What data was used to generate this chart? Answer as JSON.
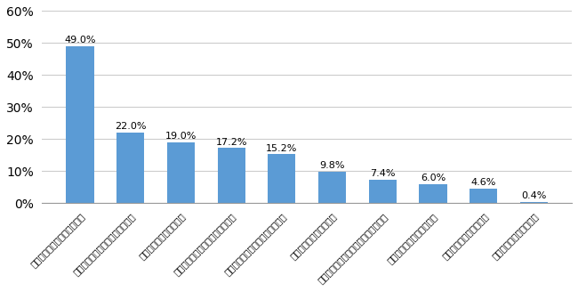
{
  "categories": [
    "後々迷惑をかけたくないから",
    "一緒にやった方が安心できるから",
    "心配をかけたくないから",
    "相談するほどのことでもないから",
    "子どもや家族のことが心配だから",
    "一番相談がしやすいから",
    "お墓の面倒などを見させたくないから",
    "一緒にできると嫁しいから",
    "相談しにくい内容だから",
    "子どもと仲良くないから"
  ],
  "values": [
    49.0,
    22.0,
    19.0,
    17.2,
    15.2,
    9.8,
    7.4,
    6.0,
    4.6,
    0.4
  ],
  "bar_color": "#5B9BD5",
  "ylim": [
    0,
    60
  ],
  "yticks": [
    0,
    10,
    20,
    30,
    40,
    50,
    60
  ],
  "value_labels": [
    "49.0%",
    "22.0%",
    "19.0%",
    "17.2%",
    "15.2%",
    "9.8%",
    "7.4%",
    "6.0%",
    "4.6%",
    "0.4%"
  ],
  "grid_color": "#CCCCCC",
  "background_color": "#FFFFFF",
  "label_fontsize": 7.5,
  "value_fontsize": 8.0,
  "bar_width": 0.55
}
